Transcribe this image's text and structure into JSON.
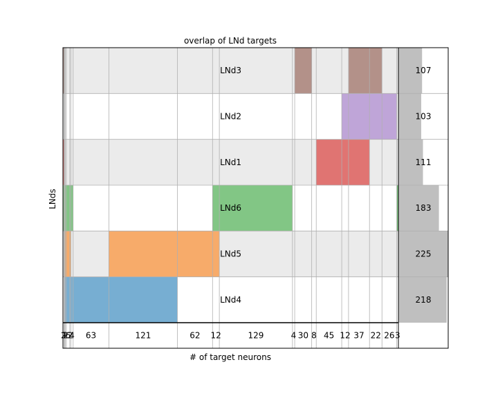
{
  "chart_data": {
    "type": "heatmap",
    "title": "overlap of LNd targets",
    "xlabel": "# of target neurons",
    "ylabel": "LNds",
    "rows": [
      "LNd3",
      "LNd2",
      "LNd1",
      "LNd6",
      "LNd5",
      "LNd4"
    ],
    "row_totals": [
      107,
      103,
      111,
      183,
      225,
      218
    ],
    "totals_xlim": [
      0,
      225
    ],
    "column_labels": [
      "2",
      "1",
      "1",
      "2",
      "6",
      "2",
      "4",
      "63",
      "121",
      "62",
      "12",
      "129",
      "4",
      "30",
      "8",
      "45",
      "12",
      "37",
      "22",
      "26",
      "3"
    ],
    "column_counts": [
      2,
      1,
      1,
      2,
      6,
      2,
      4,
      63,
      121,
      62,
      12,
      129,
      4,
      30,
      8,
      45,
      12,
      37,
      22,
      26,
      3
    ],
    "membership": [
      [
        1,
        0,
        0,
        0,
        0,
        0,
        0,
        0,
        0,
        0,
        0,
        0,
        0,
        1,
        0,
        0,
        0,
        1,
        1,
        0,
        0
      ],
      [
        0,
        0,
        0,
        0,
        0,
        0,
        0,
        0,
        0,
        0,
        0,
        0,
        0,
        0,
        0,
        0,
        1,
        1,
        1,
        1,
        0
      ],
      [
        1,
        0,
        0,
        0,
        0,
        0,
        0,
        0,
        0,
        0,
        0,
        0,
        0,
        0,
        0,
        1,
        1,
        1,
        0,
        0,
        0
      ],
      [
        1,
        1,
        0,
        1,
        1,
        1,
        1,
        0,
        0,
        0,
        1,
        1,
        0,
        0,
        0,
        0,
        0,
        0,
        0,
        0,
        1
      ],
      [
        0,
        1,
        1,
        1,
        1,
        1,
        0,
        0,
        1,
        1,
        1,
        0,
        0,
        0,
        0,
        0,
        0,
        0,
        0,
        0,
        0
      ],
      [
        0,
        1,
        1,
        1,
        1,
        1,
        1,
        1,
        1,
        0,
        0,
        0,
        0,
        0,
        0,
        0,
        0,
        0,
        0,
        0,
        0
      ]
    ],
    "row_colors": [
      "#b39189",
      "#bfa5d8",
      "#e07472",
      "#82c685",
      "#f7ab6a",
      "#77aed2"
    ],
    "band_color": "#ebebeb",
    "total_bar_color": "#bfbfbf",
    "grid": true
  }
}
